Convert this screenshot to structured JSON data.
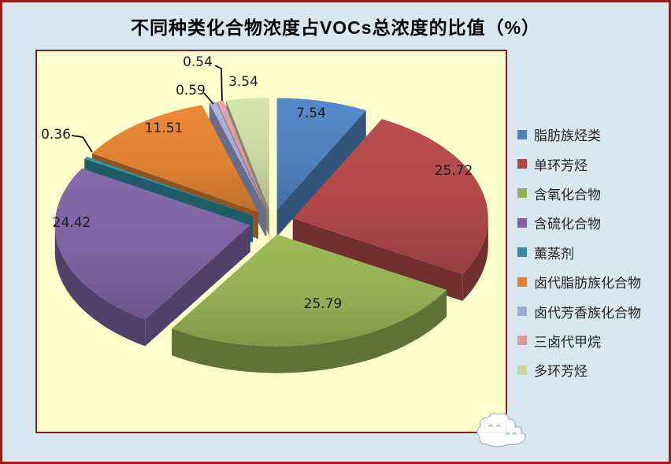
{
  "title": "不同种类化合物浓度占VOCs总浓度的比值（%）",
  "chart_data": {
    "type": "pie",
    "style": "3d-exploded",
    "title": "不同种类化合物浓度占VOCs总浓度的比值（%）",
    "unit": "%",
    "direction": "clockwise",
    "start_angle_deg": 0,
    "legend_position": "right",
    "categories": [
      "脂肪族烃类",
      "单环芳烃",
      "含氧化合物",
      "含硫化合物",
      "薰蒸剂",
      "卤代脂肪族化合物",
      "卤代芳香族化合物",
      "三卤代甲烷",
      "多环芳烃"
    ],
    "values": [
      7.54,
      25.72,
      25.79,
      24.42,
      0.36,
      11.51,
      0.59,
      0.54,
      3.54
    ],
    "labels": [
      "7.54",
      "25.72",
      "25.79",
      "24.42",
      "0.36",
      "11.51",
      "0.59",
      "0.54",
      "3.54"
    ],
    "colors": [
      "#4F81BD",
      "#B0484A",
      "#94AF53",
      "#7D63A1",
      "#2F8E9E",
      "#DD8133",
      "#A0A8D6",
      "#D9989A",
      "#C9D6A2"
    ],
    "page_background": "#D9E7F0",
    "frame_border_color": "#9C1C1C",
    "plot_background": "#FFFFCE",
    "plot_border_color": "#8B1C1C"
  }
}
